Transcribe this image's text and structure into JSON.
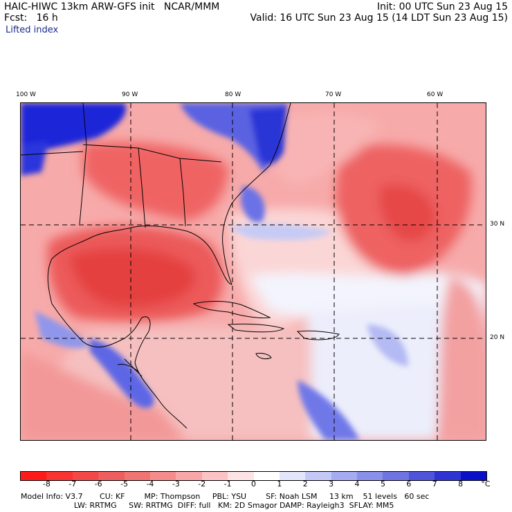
{
  "header": {
    "title_left": "HAIC-HIWC 13km ARW-GFS init   NCAR/MMM",
    "init": "Init: 00 UTC Sun 23 Aug 15",
    "fcst": "Fcst:   16 h",
    "valid": "Valid: 16 UTC Sun 23 Aug 15 (14 LDT Sun 23 Aug 15)",
    "field": "Lifted index"
  },
  "axes": {
    "lon_labels": [
      "100 W",
      "90 W",
      "80 W",
      "70 W",
      "60 W"
    ],
    "lat_labels": [
      "30 N",
      "20 N"
    ]
  },
  "colorbar": {
    "ticks": [
      "-8",
      "-7",
      "-6",
      "-5",
      "-4",
      "-3",
      "-2",
      "-1",
      "0",
      "1",
      "2",
      "3",
      "4",
      "5",
      "6",
      "7",
      "8"
    ],
    "unit": "°C",
    "colors": [
      "#ff1a1a",
      "#fa3232",
      "#f44848",
      "#ef5e5e",
      "#f07474",
      "#f58b8b",
      "#f8a6a6",
      "#fbc3c3",
      "#fde3e3",
      "#ffffff",
      "#e3e6fb",
      "#c3c8f6",
      "#a4abf0",
      "#8890ea",
      "#6e74e2",
      "#4f55da",
      "#2e34d2",
      "#0a10c8"
    ]
  },
  "footer": {
    "line1": "Model Info: V3.7       CU: KF        MP: Thompson     PBL: YSU        SF: Noah LSM     13 km    51 levels   60 sec",
    "line2": "                      LW: RRTMG     SW: RRTMG  DIFF: full   KM: 2D Smagor DAMP: Rayleigh3  SFLAY: MM5"
  }
}
